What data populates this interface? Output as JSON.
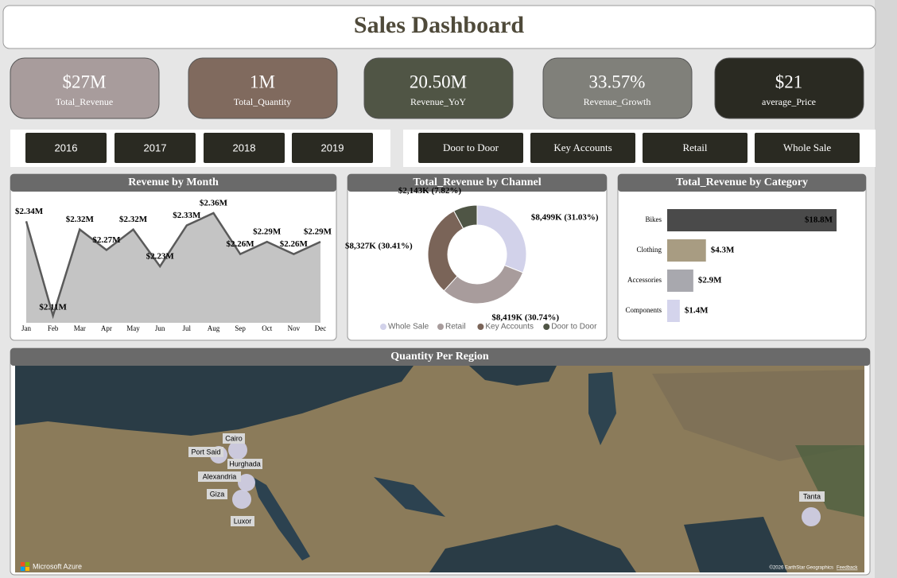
{
  "header": {
    "title": "Sales Dashboard"
  },
  "kpis": [
    {
      "value": "$27M",
      "label": "Total_Revenue",
      "color": "#a89c9c"
    },
    {
      "value": "1M",
      "label": "Total_Quantity",
      "color": "#806a5e"
    },
    {
      "value": "20.50M",
      "label": "Revenue_YoY",
      "color": "#505545"
    },
    {
      "value": "33.57%",
      "label": "Revenue_Growth",
      "color": "#80807a"
    },
    {
      "value": "$21",
      "label": "average_Price",
      "color": "#2a2a22"
    }
  ],
  "filters": {
    "years": [
      "2016",
      "2017",
      "2018",
      "2019"
    ],
    "channels": [
      "Door to Door",
      "Key Accounts",
      "Retail",
      "Whole Sale"
    ]
  },
  "chart_data": [
    {
      "type": "area",
      "title": "Revenue by Month",
      "categories": [
        "Jan",
        "Feb",
        "Mar",
        "Apr",
        "May",
        "Jun",
        "Jul",
        "Aug",
        "Sep",
        "Oct",
        "Nov",
        "Dec"
      ],
      "values": [
        2.34,
        2.11,
        2.32,
        2.27,
        2.32,
        2.23,
        2.33,
        2.36,
        2.26,
        2.29,
        2.26,
        2.29
      ],
      "value_labels": [
        "$2.34M",
        "$2.11M",
        "$2.32M",
        "$2.27M",
        "$2.32M",
        "$2.23M",
        "$2.33M",
        "$2.36M",
        "$2.26M",
        "$2.29M",
        "$2.26M",
        "$2.29M"
      ],
      "color": "#c4c4c4",
      "line_color": "#5a5a5a"
    },
    {
      "type": "donut",
      "title": "Total_Revenue by Channel",
      "categories": [
        "Whole Sale",
        "Retail",
        "Key Accounts",
        "Door to Door"
      ],
      "values": [
        8499,
        8419,
        8327,
        2143
      ],
      "value_labels": [
        "$8,499K (31.03%)",
        "$8,419K (30.74%)",
        "$8,327K (30.41%)",
        "$2,143K (7.82%)"
      ],
      "colors": [
        "#d2d2ea",
        "#a89c9c",
        "#7a6458",
        "#4f5545"
      ]
    },
    {
      "type": "bar",
      "title": "Total_Revenue by Category",
      "categories": [
        "Bikes",
        "Clothing",
        "Accessories",
        "Components"
      ],
      "values": [
        18.8,
        4.3,
        2.9,
        1.4
      ],
      "value_labels": [
        "$18.8M",
        "$4.3M",
        "$2.9M",
        "$1.4M"
      ],
      "colors": [
        "#4a4a4a",
        "#a89c82",
        "#a8a8ae",
        "#d4d4ec"
      ]
    }
  ],
  "map": {
    "title": "Quantity Per Region",
    "regions": [
      "Cairo",
      "Port Said",
      "Hurghada",
      "Alexandria",
      "Giza",
      "Luxor",
      "Tanta"
    ],
    "attribution": "Microsoft Azure",
    "copyright": "©2026 EarthStar Geographics",
    "feedback": "Feedback"
  }
}
